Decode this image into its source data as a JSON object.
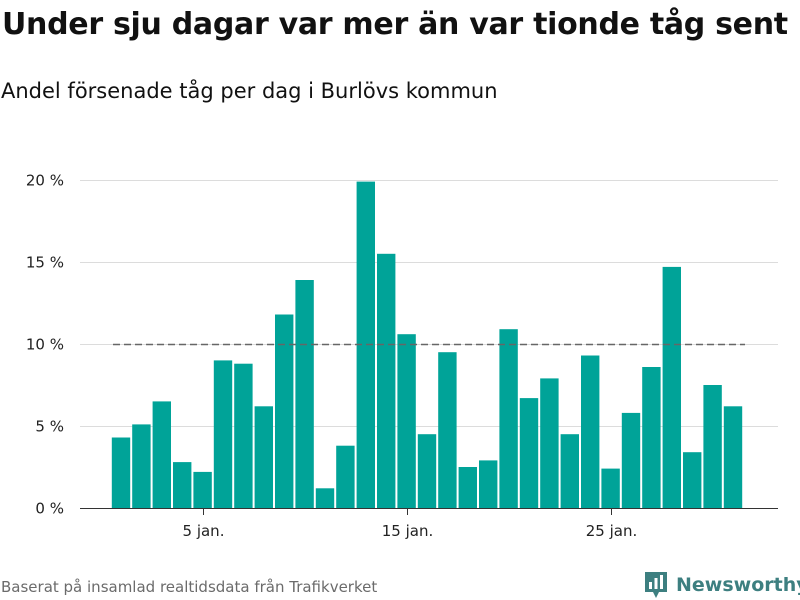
{
  "header": {
    "title": "Under sju dagar var mer än var tionde tåg sent",
    "subtitle": "Andel försenade tåg per dag i Burlövs kommun"
  },
  "footer": {
    "source": "Baserat på insamlad realtidsdata från Trafikverket",
    "brand": "Newsworthy",
    "brand_icon": "newsworthy-logo-icon"
  },
  "colors": {
    "bar": "#00a398",
    "reference_line": "#666666",
    "grid": "#dcdcdc",
    "brand": "#3d7f80"
  },
  "chart_data": {
    "type": "bar",
    "x": [
      1,
      2,
      3,
      4,
      5,
      6,
      7,
      8,
      9,
      10,
      11,
      12,
      13,
      14,
      15,
      16,
      17,
      18,
      19,
      20,
      21,
      22,
      23,
      24,
      25,
      26,
      27,
      28,
      29,
      30,
      31
    ],
    "values": [
      4.3,
      5.1,
      6.5,
      2.8,
      2.2,
      9.0,
      8.8,
      6.2,
      11.8,
      13.9,
      1.2,
      3.8,
      19.9,
      15.5,
      10.6,
      4.5,
      9.5,
      2.5,
      2.9,
      10.9,
      6.7,
      7.9,
      4.5,
      9.3,
      2.4,
      5.8,
      8.6,
      14.7,
      3.4,
      7.5,
      6.2
    ],
    "reference_line": {
      "value": 10,
      "style": "dashed"
    },
    "ylim": [
      0,
      20
    ],
    "y_ticks": [
      {
        "value": 0,
        "label": "0 %"
      },
      {
        "value": 5,
        "label": "5 %"
      },
      {
        "value": 10,
        "label": "10 %"
      },
      {
        "value": 15,
        "label": "15 %"
      },
      {
        "value": 20,
        "label": "20 %"
      }
    ],
    "x_ticks": [
      {
        "value": 5,
        "label": "5 jan."
      },
      {
        "value": 15,
        "label": "15 jan."
      },
      {
        "value": 25,
        "label": "25 jan."
      }
    ],
    "grid": true,
    "legend": "none",
    "xlabel": "",
    "ylabel": ""
  }
}
